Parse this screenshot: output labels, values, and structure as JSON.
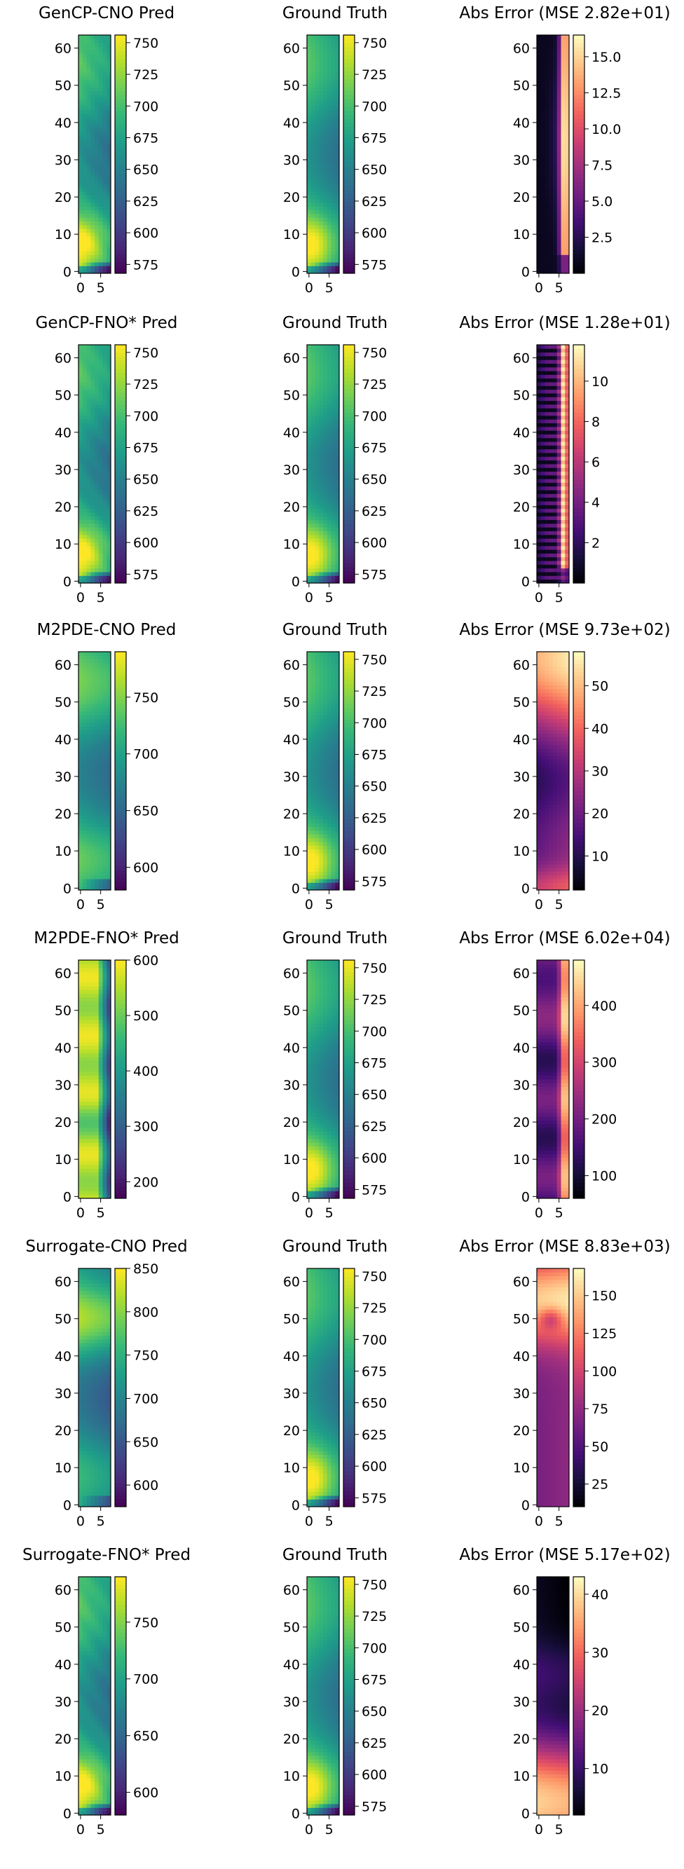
{
  "figure": {
    "description_rows": 6,
    "columns": [
      "pred",
      "truth",
      "error"
    ]
  },
  "colors": {
    "viridis": [
      "#440154",
      "#482878",
      "#3e4989",
      "#31688e",
      "#26828e",
      "#1f9e89",
      "#35b779",
      "#6ece58",
      "#b5de2b",
      "#fde725"
    ],
    "magma": [
      "#000004",
      "#180f3d",
      "#440f76",
      "#721f81",
      "#9e2f7f",
      "#cd4071",
      "#f1605d",
      "#fd9668",
      "#feca8d",
      "#fcfdbf"
    ]
  },
  "chart_data": [
    {
      "row": 0,
      "type": "heatmap",
      "title": "GenCP-CNO Pred",
      "cmap": "viridis",
      "field": "pred",
      "cbar_ticks": [
        "575",
        "600",
        "625",
        "650",
        "675",
        "700",
        "725",
        "750"
      ],
      "vmin": 568,
      "vmax": 756,
      "xticks": [
        "0",
        "5"
      ],
      "yticks": [
        "0",
        "10",
        "20",
        "30",
        "40",
        "50",
        "60"
      ]
    },
    {
      "row": 0,
      "type": "heatmap",
      "title": "Ground Truth",
      "cmap": "viridis",
      "field": "truth",
      "cbar_ticks": [
        "575",
        "600",
        "625",
        "650",
        "675",
        "700",
        "725",
        "750"
      ],
      "vmin": 568,
      "vmax": 756,
      "xticks": [
        "0",
        "5"
      ],
      "yticks": [
        "0",
        "10",
        "20",
        "30",
        "40",
        "50",
        "60"
      ]
    },
    {
      "row": 0,
      "type": "heatmap",
      "title": "Abs Error (MSE 2.82e+01)",
      "cmap": "magma",
      "field": "err_edge",
      "cbar_ticks": [
        "2.5",
        "5.0",
        "7.5",
        "10.0",
        "12.5",
        "15.0"
      ],
      "vmin": 0,
      "vmax": 16.5,
      "xticks": [
        "0",
        "5"
      ],
      "yticks": [
        "0",
        "10",
        "20",
        "30",
        "40",
        "50",
        "60"
      ]
    },
    {
      "row": 1,
      "type": "heatmap",
      "title": "GenCP-FNO* Pred",
      "cmap": "viridis",
      "field": "pred",
      "cbar_ticks": [
        "575",
        "600",
        "625",
        "650",
        "675",
        "700",
        "725",
        "750"
      ],
      "vmin": 568,
      "vmax": 756,
      "xticks": [
        "0",
        "5"
      ],
      "yticks": [
        "0",
        "10",
        "20",
        "30",
        "40",
        "50",
        "60"
      ]
    },
    {
      "row": 1,
      "type": "heatmap",
      "title": "Ground Truth",
      "cmap": "viridis",
      "field": "truth",
      "cbar_ticks": [
        "575",
        "600",
        "625",
        "650",
        "675",
        "700",
        "725",
        "750"
      ],
      "vmin": 568,
      "vmax": 756,
      "xticks": [
        "0",
        "5"
      ],
      "yticks": [
        "0",
        "10",
        "20",
        "30",
        "40",
        "50",
        "60"
      ]
    },
    {
      "row": 1,
      "type": "heatmap",
      "title": "Abs Error (MSE 1.28e+01)",
      "cmap": "magma",
      "field": "err_stripe",
      "cbar_ticks": [
        "2",
        "4",
        "6",
        "8",
        "10"
      ],
      "vmin": 0,
      "vmax": 11.8,
      "xticks": [
        "0",
        "5"
      ],
      "yticks": [
        "0",
        "10",
        "20",
        "30",
        "40",
        "50",
        "60"
      ]
    },
    {
      "row": 2,
      "type": "heatmap",
      "title": "M2PDE-CNO Pred",
      "cmap": "viridis",
      "field": "pred_hot",
      "cbar_ticks": [
        "600",
        "650",
        "700",
        "750"
      ],
      "vmin": 580,
      "vmax": 790,
      "xticks": [
        "0",
        "5"
      ],
      "yticks": [
        "0",
        "10",
        "20",
        "30",
        "40",
        "50",
        "60"
      ]
    },
    {
      "row": 2,
      "type": "heatmap",
      "title": "Ground Truth",
      "cmap": "viridis",
      "field": "truth",
      "cbar_ticks": [
        "575",
        "600",
        "625",
        "650",
        "675",
        "700",
        "725",
        "750"
      ],
      "vmin": 568,
      "vmax": 756,
      "xticks": [
        "0",
        "5"
      ],
      "yticks": [
        "0",
        "10",
        "20",
        "30",
        "40",
        "50",
        "60"
      ]
    },
    {
      "row": 2,
      "type": "heatmap",
      "title": "Abs Error (MSE 9.73e+02)",
      "cmap": "magma",
      "field": "err_broad",
      "cbar_ticks": [
        "10",
        "20",
        "30",
        "40",
        "50"
      ],
      "vmin": 2,
      "vmax": 58,
      "xticks": [
        "0",
        "5"
      ],
      "yticks": [
        "0",
        "10",
        "20",
        "30",
        "40",
        "50",
        "60"
      ]
    },
    {
      "row": 3,
      "type": "heatmap",
      "title": "M2PDE-FNO* Pred",
      "cmap": "viridis",
      "field": "pred_bad",
      "cbar_ticks": [
        "200",
        "300",
        "400",
        "500",
        "600"
      ],
      "vmin": 170,
      "vmax": 600,
      "xticks": [
        "0",
        "5"
      ],
      "yticks": [
        "0",
        "10",
        "20",
        "30",
        "40",
        "50",
        "60"
      ]
    },
    {
      "row": 3,
      "type": "heatmap",
      "title": "Ground Truth",
      "cmap": "viridis",
      "field": "truth",
      "cbar_ticks": [
        "575",
        "600",
        "625",
        "650",
        "675",
        "700",
        "725",
        "750"
      ],
      "vmin": 568,
      "vmax": 756,
      "xticks": [
        "0",
        "5"
      ],
      "yticks": [
        "0",
        "10",
        "20",
        "30",
        "40",
        "50",
        "60"
      ]
    },
    {
      "row": 3,
      "type": "heatmap",
      "title": "Abs Error (MSE 6.02e+04)",
      "cmap": "magma",
      "field": "err_big",
      "cbar_ticks": [
        "100",
        "200",
        "300",
        "400"
      ],
      "vmin": 60,
      "vmax": 480,
      "xticks": [
        "0",
        "5"
      ],
      "yticks": [
        "0",
        "10",
        "20",
        "30",
        "40",
        "50",
        "60"
      ]
    },
    {
      "row": 4,
      "type": "heatmap",
      "title": "Surrogate-CNO Pred",
      "cmap": "viridis",
      "field": "pred_hot2",
      "cbar_ticks": [
        "600",
        "650",
        "700",
        "750",
        "800",
        "850"
      ],
      "vmin": 575,
      "vmax": 850,
      "xticks": [
        "0",
        "5"
      ],
      "yticks": [
        "0",
        "10",
        "20",
        "30",
        "40",
        "50",
        "60"
      ]
    },
    {
      "row": 4,
      "type": "heatmap",
      "title": "Ground Truth",
      "cmap": "viridis",
      "field": "truth",
      "cbar_ticks": [
        "575",
        "600",
        "625",
        "650",
        "675",
        "700",
        "725",
        "750"
      ],
      "vmin": 568,
      "vmax": 756,
      "xticks": [
        "0",
        "5"
      ],
      "yticks": [
        "0",
        "10",
        "20",
        "30",
        "40",
        "50",
        "60"
      ]
    },
    {
      "row": 4,
      "type": "heatmap",
      "title": "Abs Error (MSE 8.83e+03)",
      "cmap": "magma",
      "field": "err_top",
      "cbar_ticks": [
        "25",
        "50",
        "75",
        "100",
        "125",
        "150"
      ],
      "vmin": 10,
      "vmax": 168,
      "xticks": [
        "0",
        "5"
      ],
      "yticks": [
        "0",
        "10",
        "20",
        "30",
        "40",
        "50",
        "60"
      ]
    },
    {
      "row": 5,
      "type": "heatmap",
      "title": "Surrogate-FNO* Pred",
      "cmap": "viridis",
      "field": "pred",
      "cbar_ticks": [
        "600",
        "650",
        "700",
        "750"
      ],
      "vmin": 580,
      "vmax": 790,
      "xticks": [
        "0",
        "5"
      ],
      "yticks": [
        "0",
        "10",
        "20",
        "30",
        "40",
        "50",
        "60"
      ]
    },
    {
      "row": 5,
      "type": "heatmap",
      "title": "Ground Truth",
      "cmap": "viridis",
      "field": "truth",
      "cbar_ticks": [
        "575",
        "600",
        "625",
        "650",
        "675",
        "700",
        "725",
        "750"
      ],
      "vmin": 568,
      "vmax": 756,
      "xticks": [
        "0",
        "5"
      ],
      "yticks": [
        "0",
        "10",
        "20",
        "30",
        "40",
        "50",
        "60"
      ]
    },
    {
      "row": 5,
      "type": "heatmap",
      "title": "Abs Error (MSE 5.17e+02)",
      "cmap": "magma",
      "field": "err_bottom",
      "cbar_ticks": [
        "10",
        "20",
        "30",
        "40"
      ],
      "vmin": 2,
      "vmax": 43,
      "xticks": [
        "0",
        "5"
      ],
      "yticks": [
        "0",
        "10",
        "20",
        "30",
        "40",
        "50",
        "60"
      ]
    }
  ]
}
